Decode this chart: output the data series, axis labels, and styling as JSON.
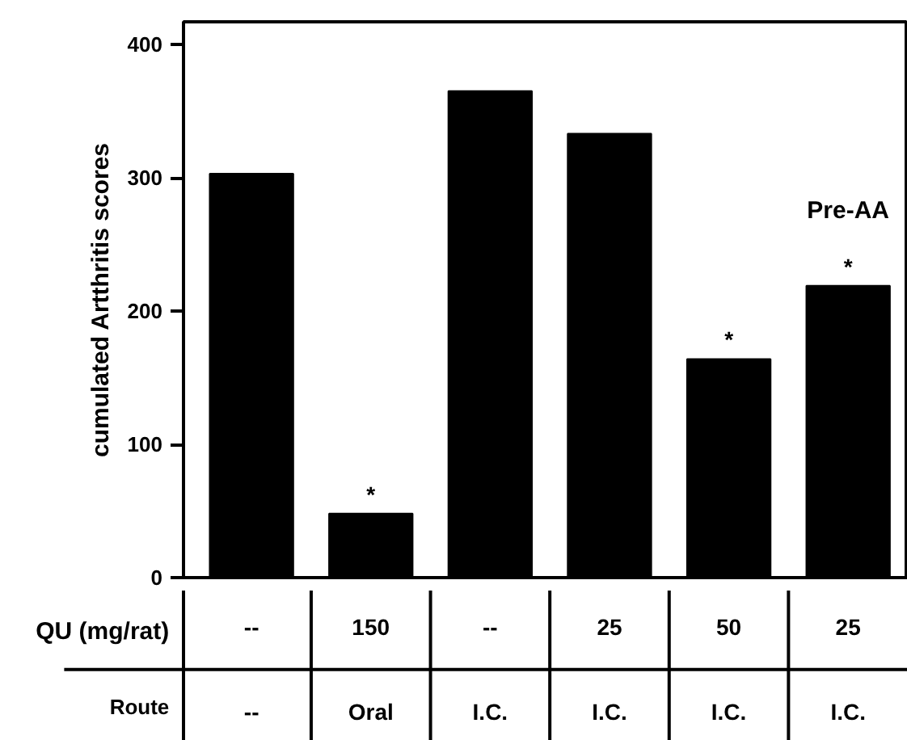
{
  "chart_data": {
    "type": "bar",
    "ylabel": "cumulated Artthritis scores",
    "categories": [
      "--\n--",
      "150\nOral",
      "--\nI.C.",
      "25\nI.C.",
      "50\nI.C.",
      "25\nI.C."
    ],
    "values": [
      303,
      48,
      365,
      333,
      164,
      219
    ],
    "color": "#000000",
    "ylim": [
      0,
      417
    ],
    "yticks": [
      0,
      100,
      200,
      300,
      400
    ],
    "grid": false,
    "value_labels": [
      null,
      "*",
      null,
      null,
      "*",
      "*"
    ],
    "annotations": [
      "QU (mg/rat)",
      "Route",
      "Pre-AA"
    ]
  }
}
